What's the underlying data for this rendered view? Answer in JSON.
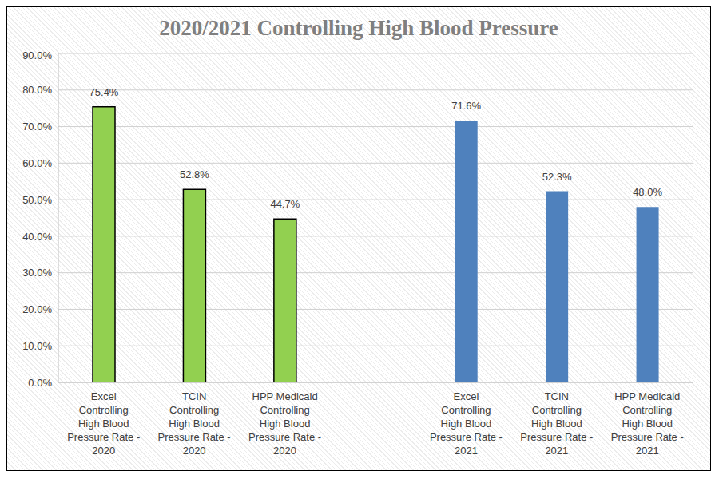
{
  "chart_data": {
    "type": "bar",
    "title": "2020/2021 Controlling High Blood Pressure",
    "categories": [
      "Excel Controlling High Blood Pressure Rate - 2020",
      "TCIN Controlling High Blood Pressure Rate - 2020",
      "HPP Medicaid Controlling High Blood Pressure Rate - 2020",
      null,
      "Excel Controlling High Blood Pressure Rate - 2021",
      "TCIN Controlling High Blood Pressure Rate - 2021",
      "HPP Medicaid Controlling High Blood Pressure Rate - 2021"
    ],
    "values": [
      75.4,
      52.8,
      44.7,
      null,
      71.6,
      52.3,
      48.0
    ],
    "value_labels": [
      "75.4%",
      "52.8%",
      "44.7%",
      null,
      "71.6%",
      "52.3%",
      "48.0%"
    ],
    "colors": [
      "#92d050",
      "#92d050",
      "#92d050",
      null,
      "#4f81bd",
      "#4f81bd",
      "#4f81bd"
    ],
    "ylim": [
      0,
      90
    ],
    "yticks": [
      {
        "value": 0,
        "label": "0.0%"
      },
      {
        "value": 10,
        "label": "10.0%"
      },
      {
        "value": 20,
        "label": "20.0%"
      },
      {
        "value": 30,
        "label": "30.0%"
      },
      {
        "value": 40,
        "label": "40.0%"
      },
      {
        "value": 50,
        "label": "50.0%"
      },
      {
        "value": 60,
        "label": "60.0%"
      },
      {
        "value": 70,
        "label": "70.0%"
      },
      {
        "value": 80,
        "label": "80.0%"
      },
      {
        "value": 90,
        "label": "90.0%"
      }
    ],
    "grid": true,
    "data_labels": true
  }
}
